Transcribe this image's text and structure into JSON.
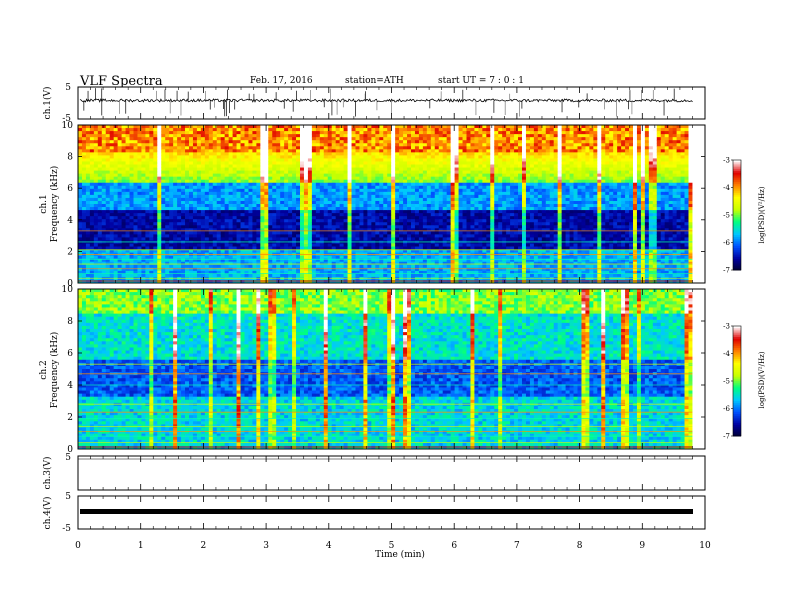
{
  "header": {
    "title": "VLF Spectra",
    "date": "Feb. 17, 2016",
    "station": "station=ATH",
    "start": "start UT =  7 : 0 : 1"
  },
  "chart_data": {
    "type": "heatmap",
    "x": {
      "label": "Time (min)",
      "range": [
        0,
        10
      ],
      "ticks": [
        "0",
        "1",
        "2",
        "3",
        "4",
        "5",
        "6",
        "7",
        "8",
        "9",
        "10"
      ],
      "data_end": 9.8
    },
    "panels": [
      {
        "kind": "waveform",
        "ylabel": "ch.1(V)",
        "ylim": [
          -5,
          5
        ],
        "ticks": [
          "5",
          "-5"
        ],
        "baseline": 0.8,
        "color": "#000000"
      },
      {
        "kind": "spectrogram",
        "ylabel": "ch.1 Frequency (kHz)",
        "ylabel_top": "ch.1",
        "ylabel_bottom": "Frequency (kHz)",
        "ylim": [
          0,
          10
        ],
        "ticks": [
          "0",
          "2",
          "4",
          "6",
          "8",
          "10"
        ],
        "colorbar": {
          "label": "log(PSD)(V²/Hz)",
          "range": [
            -7,
            -3
          ],
          "ticks": [
            "-3",
            "-4",
            "-5",
            "-6",
            "-7"
          ]
        }
      },
      {
        "kind": "spectrogram",
        "ylabel": "ch.2 Frequency (kHz)",
        "ylabel_top": "ch.2",
        "ylabel_bottom": "Frequency (kHz)",
        "ylim": [
          0,
          10
        ],
        "ticks": [
          "0",
          "2",
          "4",
          "6",
          "8",
          "10"
        ],
        "colorbar": {
          "label": "log(PSD)(V²/Hz)",
          "range": [
            -7,
            -3
          ],
          "ticks": [
            "-3",
            "-4",
            "-5",
            "-6",
            "-7"
          ]
        }
      },
      {
        "kind": "waveform",
        "ylabel": "ch.3(V)",
        "ylim": [
          -5,
          5
        ],
        "ticks": [
          "5"
        ],
        "baseline": 0,
        "color": "#000000"
      },
      {
        "kind": "waveform",
        "ylabel": "ch.4(V)",
        "ylim": [
          -5,
          5
        ],
        "ticks": [
          "5",
          "-5"
        ],
        "baseline": 0,
        "color": "#000000"
      }
    ],
    "colormap": [
      "#000030",
      "#0000a0",
      "#0050ff",
      "#00c8ff",
      "#00ff80",
      "#c8ff00",
      "#ffff00",
      "#ff8000",
      "#e00000",
      "#ffffff"
    ]
  }
}
